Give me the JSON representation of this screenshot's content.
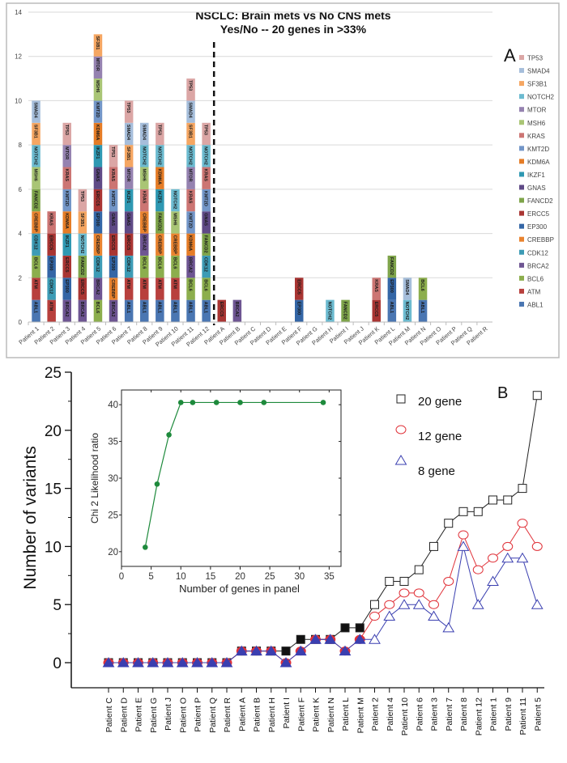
{
  "chart_data": [
    {
      "panel": "A",
      "type": "bar",
      "stacked": true,
      "title": [
        "NSCLC: Brain mets vs No CNS mets",
        "Yes/No -- 20 genes in >33%"
      ],
      "panel_label": "A",
      "ylim": [
        0,
        14
      ],
      "yticks": [
        0,
        2,
        4,
        6,
        8,
        10,
        12,
        14
      ],
      "grid": true,
      "legend_placement": "right",
      "genes": [
        "ABL1",
        "ATM",
        "BCL6",
        "BRCA2",
        "CDK12",
        "CREBBP",
        "EP300",
        "ERCC5",
        "FANCD2",
        "GNAS",
        "IKZF1",
        "KDM6A",
        "KMT2D",
        "KRAS",
        "MSH6",
        "MTOR",
        "NOTCH2",
        "SF3B1",
        "SMAD4",
        "TP53"
      ],
      "colors": {
        "ABL1": "#4a76b2",
        "ATM": "#b8403d",
        "BCL6": "#8cae4d",
        "BRCA2": "#6e5592",
        "CDK12": "#3d9bb5",
        "CREBBP": "#e9832f",
        "EP300": "#3466a6",
        "ERCC5": "#a93533",
        "FANCD2": "#7ea44a",
        "GNAS": "#5f4a86",
        "IKZF1": "#2e98b2",
        "KDM6A": "#e57c26",
        "KMT2D": "#7396c8",
        "KRAS": "#cc7573",
        "MSH6": "#a9c575",
        "MTOR": "#9582b0",
        "NOTCH2": "#6cbbd0",
        "SF3B1": "#f5a662",
        "SMAD4": "#a6bedb",
        "TP53": "#dba6a5"
      },
      "separator_after": "Patient 12",
      "categories": [
        "Patient 1",
        "Patient 2",
        "Patient 3",
        "Patient 4",
        "Patient 5",
        "Patient 6",
        "Patient 7",
        "Patient 8",
        "Patient 9",
        "Patient 10",
        "Patient 11",
        "Patient 12",
        "Patient A",
        "Patient B",
        "Patient C",
        "Patient D",
        "Patient E",
        "Patient F",
        "Patient G",
        "Patient H",
        "Patient I",
        "Patient J",
        "Patient K",
        "Patient L",
        "Patient M",
        "Patient N",
        "Patient O",
        "Patient P",
        "Patient Q",
        "Patient R"
      ],
      "stacks": [
        [
          "ABL1",
          "ATM",
          "BCL6",
          "CDK12",
          "CREBBP",
          "FANCD2",
          "MSH6",
          "NOTCH2",
          "SF3B1",
          "SMAD4"
        ],
        [
          "ATM",
          "CDK12",
          "EP300",
          "ERCC5",
          "KRAS"
        ],
        [
          "BRCA2",
          "EP300",
          "ERCC5",
          "IKZF1",
          "KDM6A",
          "KMT2D",
          "KRAS",
          "MTOR",
          "TP53"
        ],
        [
          "BRCA2",
          "ERCC5",
          "FANCD2",
          "NOTCH2",
          "SF3B1",
          "TP53"
        ],
        [
          "BCL6",
          "BRCA2",
          "CDK12",
          "CREBBP",
          "EP300",
          "ERCC5",
          "GNAS",
          "IKZF1",
          "KDM6A",
          "KMT2D",
          "MSH6",
          "MTOR",
          "SF3B1"
        ],
        [
          "BRCA2",
          "CREBBP",
          "EP300",
          "ERCC5",
          "GNAS",
          "KMT2D",
          "KRAS",
          "TP53"
        ],
        [
          "ABL1",
          "ATM",
          "CDK12",
          "ERCC5",
          "GNAS",
          "IKZF1",
          "MTOR",
          "SF3B1",
          "SMAD4",
          "TP53"
        ],
        [
          "ABL1",
          "ATM",
          "BCL6",
          "BRCA2",
          "CREBBP",
          "KRAS",
          "MSH6",
          "NOTCH2",
          "SMAD4"
        ],
        [
          "ABL1",
          "ATM",
          "BCL6",
          "CREBBP",
          "FANCD2",
          "IKZF1",
          "KDM6A",
          "NOTCH2",
          "TP53"
        ],
        [
          "ABL1",
          "ATM",
          "BCL6",
          "CREBBP",
          "MSH6",
          "NOTCH2"
        ],
        [
          "ABL1",
          "BCL6",
          "BRCA2",
          "KDM6A",
          "KMT2D",
          "KRAS",
          "MTOR",
          "NOTCH2",
          "SF3B1",
          "SMAD4",
          "TP53"
        ],
        [
          "ABL1",
          "BCL6",
          "CDK12",
          "FANCD2",
          "GNAS",
          "KMT2D",
          "KRAS",
          "NOTCH2",
          "TP53"
        ],
        [
          "ERCC5"
        ],
        [
          "BRCA2"
        ],
        [],
        [],
        [],
        [
          "EP300",
          "ERCC5"
        ],
        [],
        [
          "NOTCH2"
        ],
        [
          "FANCD2"
        ],
        [],
        [
          "ERCC5",
          "KRAS"
        ],
        [
          "ABL1",
          "EP300",
          "FANCD2"
        ],
        [
          "NOTCH2",
          "SMAD4"
        ],
        [
          "ABL1",
          "BCL6"
        ],
        [],
        [],
        [],
        []
      ]
    },
    {
      "panel": "B",
      "type": "line",
      "panel_label": "B",
      "ylabel": "Number of variants",
      "xlabel": "",
      "ylim": [
        0,
        25
      ],
      "yticks": [
        0,
        5,
        10,
        15,
        20,
        25
      ],
      "legend_placement": "top-right",
      "categories": [
        "Patient C",
        "Patient D",
        "Patient E",
        "Patient G",
        "Patient J",
        "Patient O",
        "Patient P",
        "Patient Q",
        "Patient R",
        "Patient A",
        "Patient B",
        "Patient H",
        "Patient I",
        "Patient F",
        "Patient K",
        "Patient N",
        "Patient L",
        "Patient M",
        "Patient 2",
        "Patient 4",
        "Patient 10",
        "Patient 6",
        "Patient 3",
        "Patient 7",
        "Patient 8",
        "Patient 12",
        "Patient 1",
        "Patient 9",
        "Patient 11",
        "Patient 5"
      ],
      "series": [
        {
          "name": "20 gene",
          "marker": "square",
          "color": "#222222",
          "values": [
            0,
            0,
            0,
            0,
            0,
            0,
            0,
            0,
            0,
            1,
            1,
            1,
            1,
            2,
            2,
            2,
            3,
            3,
            5,
            7,
            7,
            8,
            10,
            12,
            13,
            13,
            14,
            14,
            15,
            23
          ]
        },
        {
          "name": "12 gene",
          "marker": "circle",
          "color": "#e0333a",
          "values": [
            0,
            0,
            0,
            0,
            0,
            0,
            0,
            0,
            0,
            1,
            1,
            1,
            0,
            1,
            2,
            2,
            1,
            2,
            4,
            5,
            6,
            6,
            5,
            7,
            11,
            8,
            9,
            10,
            12,
            10
          ]
        },
        {
          "name": "8 gene",
          "marker": "triangle",
          "color": "#3a3fb0",
          "values": [
            0,
            0,
            0,
            0,
            0,
            0,
            0,
            0,
            0,
            1,
            1,
            1,
            0,
            1,
            2,
            2,
            1,
            2,
            2,
            4,
            5,
            5,
            4,
            3,
            10,
            5,
            7,
            9,
            9,
            5
          ]
        }
      ]
    },
    {
      "panel": "B-inset",
      "type": "line",
      "xlabel": "Number of genes in panel",
      "ylabel": "Chi 2  Likelihood ratio",
      "xlim": [
        0,
        37
      ],
      "ylim": [
        18,
        42
      ],
      "xticks": [
        0,
        5,
        10,
        15,
        20,
        25,
        30,
        35
      ],
      "yticks": [
        20,
        25,
        30,
        35,
        40
      ],
      "color": "#1e8a3c",
      "x": [
        4,
        6,
        8,
        10,
        12,
        16,
        20,
        24,
        34
      ],
      "y": [
        20.6,
        29.2,
        35.9,
        40.3,
        40.3,
        40.3,
        40.3,
        40.3,
        40.3
      ]
    }
  ]
}
